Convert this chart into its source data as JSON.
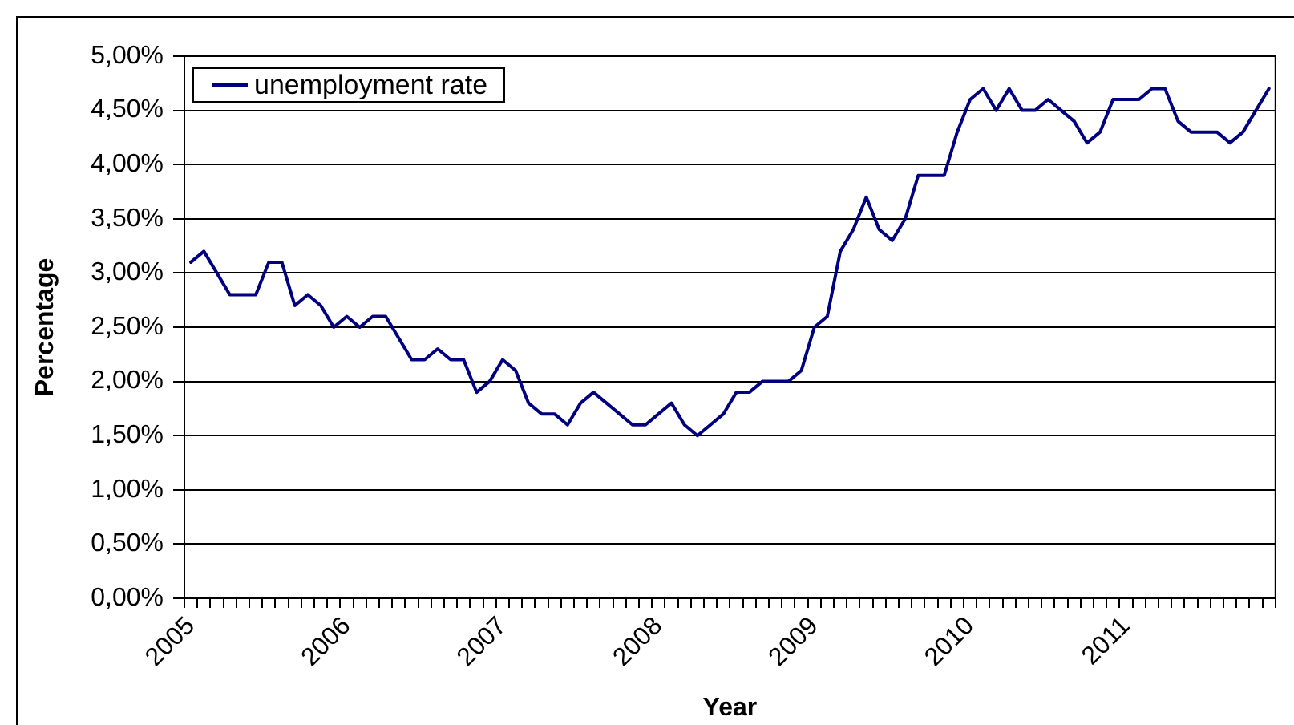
{
  "chart_data": {
    "type": "line",
    "xlabel": "Year",
    "ylabel": "Percentage",
    "categories": [
      "2005",
      null,
      null,
      null,
      null,
      null,
      null,
      null,
      null,
      null,
      null,
      null,
      "2006",
      null,
      null,
      null,
      null,
      null,
      null,
      null,
      null,
      null,
      null,
      null,
      "2007",
      null,
      null,
      null,
      null,
      null,
      null,
      null,
      null,
      null,
      null,
      null,
      "2008",
      null,
      null,
      null,
      null,
      null,
      null,
      null,
      null,
      null,
      null,
      null,
      "2009",
      null,
      null,
      null,
      null,
      null,
      null,
      null,
      null,
      null,
      null,
      null,
      "2010",
      null,
      null,
      null,
      null,
      null,
      null,
      null,
      null,
      null,
      null,
      null,
      "2011",
      null,
      null,
      null,
      null,
      null,
      null,
      null,
      null,
      null,
      null,
      null
    ],
    "series": [
      {
        "name": "unemployment rate",
        "color": "#000080",
        "values": [
          3.1,
          3.2,
          3.0,
          2.8,
          2.8,
          2.8,
          3.1,
          3.1,
          2.7,
          2.8,
          2.7,
          2.5,
          2.6,
          2.5,
          2.6,
          2.6,
          2.4,
          2.2,
          2.2,
          2.3,
          2.2,
          2.2,
          1.9,
          2.0,
          2.2,
          2.1,
          1.8,
          1.7,
          1.7,
          1.6,
          1.8,
          1.9,
          1.8,
          1.7,
          1.6,
          1.6,
          1.7,
          1.8,
          1.6,
          1.5,
          1.6,
          1.7,
          1.9,
          1.9,
          2.0,
          2.0,
          2.0,
          2.1,
          2.5,
          2.6,
          3.2,
          3.4,
          3.7,
          3.4,
          3.3,
          3.5,
          3.9,
          3.9,
          3.9,
          4.3,
          4.6,
          4.7,
          4.5,
          4.7,
          4.5,
          4.5,
          4.6,
          4.5,
          4.4,
          4.2,
          4.3,
          4.6,
          4.6,
          4.6,
          4.7,
          4.7,
          4.4,
          4.3,
          4.3,
          4.3,
          4.2,
          4.3,
          4.5,
          4.7
        ]
      }
    ],
    "ylim": [
      0,
      5
    ],
    "yticks": [
      {
        "value": 0,
        "label": "0,00%"
      },
      {
        "value": 0.5,
        "label": "0,50%"
      },
      {
        "value": 1,
        "label": "1,00%"
      },
      {
        "value": 1.5,
        "label": "1,50%"
      },
      {
        "value": 2,
        "label": "2,00%"
      },
      {
        "value": 2.5,
        "label": "2,50%"
      },
      {
        "value": 3,
        "label": "3,00%"
      },
      {
        "value": 3.5,
        "label": "3,50%"
      },
      {
        "value": 4,
        "label": "4,00%"
      },
      {
        "value": 4.5,
        "label": "4,50%"
      },
      {
        "value": 5,
        "label": "5,00%"
      }
    ],
    "grid": "y",
    "legend": "top left",
    "marker": "none",
    "line_style": "solid"
  }
}
